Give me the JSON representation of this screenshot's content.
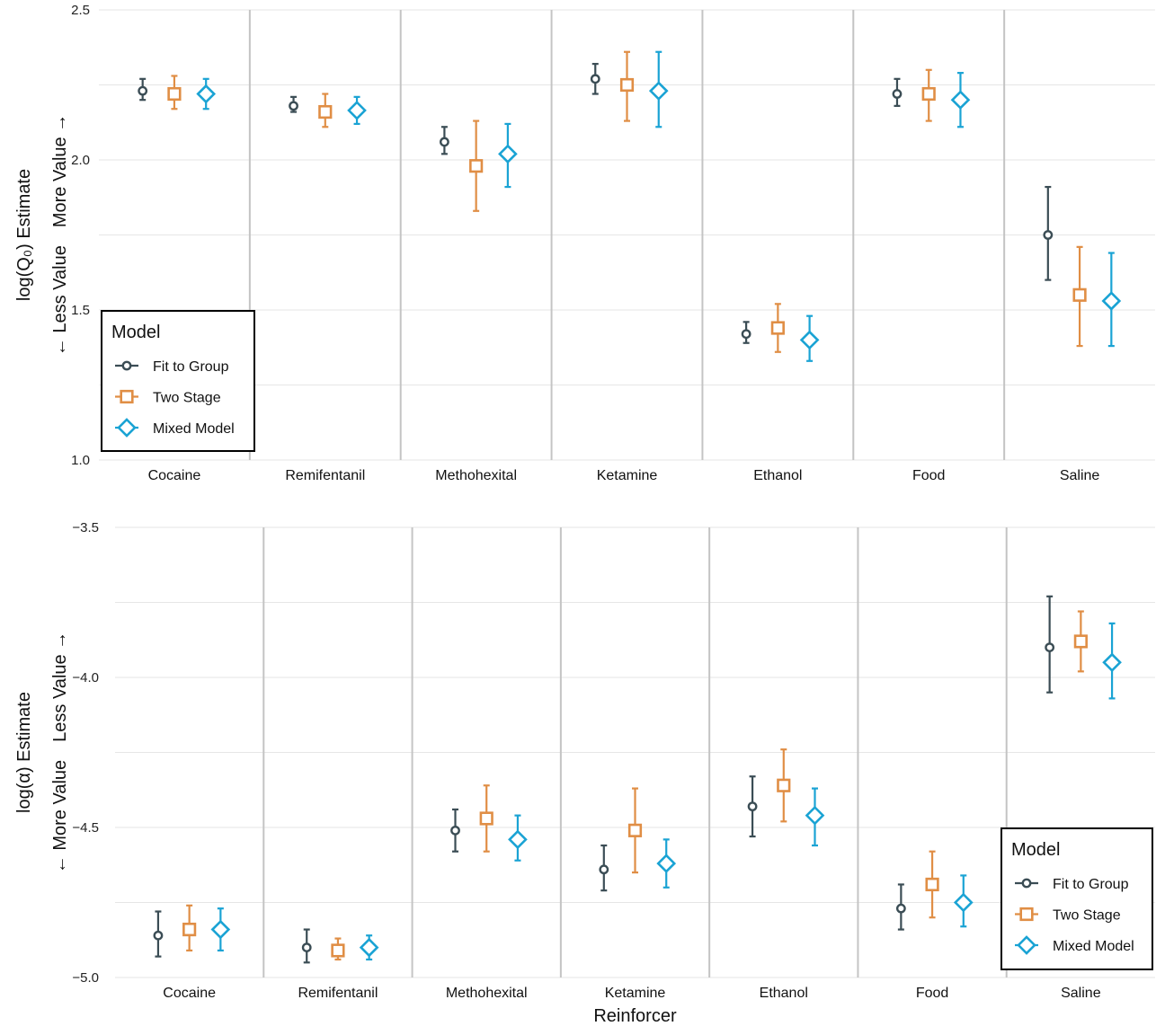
{
  "colors": {
    "fit_to_group": "#3b4d55",
    "two_stage": "#e08e45",
    "mixed_model": "#1aa3d4",
    "grid": "#e6e6e6",
    "separator": "#c4c4c4"
  },
  "chart_data": [
    {
      "type": "scatter",
      "panel": "top",
      "title": "",
      "xlabel": "",
      "ylabel": "log(Q₀) Estimate",
      "ylabel_sub_low": "← Less Value",
      "ylabel_sub_high": "More Value →",
      "ylim": [
        1.0,
        2.5
      ],
      "yticks": [
        1.0,
        1.5,
        2.0,
        2.5
      ],
      "ytick_labels": [
        "1.0",
        "1.5",
        "2.0",
        "2.5"
      ],
      "grid": true,
      "legend": {
        "title": "Model",
        "placement": "bottom-left",
        "entries": [
          "Fit to Group",
          "Two Stage",
          "Mixed Model"
        ]
      },
      "categories": [
        "Cocaine",
        "Remifentanil",
        "Methohexital",
        "Ketamine",
        "Ethanol",
        "Food",
        "Saline"
      ],
      "series": [
        {
          "name": "Fit to Group",
          "marker": "circle",
          "values": [
            2.23,
            2.18,
            2.06,
            2.27,
            1.42,
            2.22,
            1.75
          ],
          "lower": [
            2.2,
            2.16,
            2.02,
            2.22,
            1.39,
            2.18,
            1.6
          ],
          "upper": [
            2.27,
            2.21,
            2.11,
            2.32,
            1.46,
            2.27,
            1.91
          ]
        },
        {
          "name": "Two Stage",
          "marker": "square",
          "values": [
            2.22,
            2.16,
            1.98,
            2.25,
            1.44,
            2.22,
            1.55
          ],
          "lower": [
            2.17,
            2.11,
            1.83,
            2.13,
            1.36,
            2.13,
            1.38
          ],
          "upper": [
            2.28,
            2.22,
            2.13,
            2.36,
            1.52,
            2.3,
            1.71
          ]
        },
        {
          "name": "Mixed Model",
          "marker": "diamond",
          "values": [
            2.22,
            2.165,
            2.02,
            2.23,
            1.4,
            2.2,
            1.53
          ],
          "lower": [
            2.17,
            2.12,
            1.91,
            2.11,
            1.33,
            2.11,
            1.38
          ],
          "upper": [
            2.27,
            2.21,
            2.12,
            2.36,
            1.48,
            2.29,
            1.69
          ]
        }
      ]
    },
    {
      "type": "scatter",
      "panel": "bottom",
      "title": "",
      "xlabel": "Reinforcer",
      "ylabel": "log(α) Estimate",
      "ylabel_sub_low": "← More Value",
      "ylabel_sub_high": "Less Value →",
      "ylim": [
        -5.0,
        -3.5
      ],
      "yticks": [
        -5.0,
        -4.5,
        -4.0,
        -3.5
      ],
      "ytick_labels": [
        "−5.0",
        "−4.5",
        "−4.0",
        "−3.5"
      ],
      "grid": true,
      "legend": {
        "title": "Model",
        "placement": "bottom-right",
        "entries": [
          "Fit to Group",
          "Two Stage",
          "Mixed Model"
        ]
      },
      "categories": [
        "Cocaine",
        "Remifentanil",
        "Methohexital",
        "Ketamine",
        "Ethanol",
        "Food",
        "Saline"
      ],
      "series": [
        {
          "name": "Fit to Group",
          "marker": "circle",
          "values": [
            -4.86,
            -4.9,
            -4.51,
            -4.64,
            -4.43,
            -4.77,
            -3.9
          ],
          "lower": [
            -4.93,
            -4.95,
            -4.58,
            -4.71,
            -4.53,
            -4.84,
            -4.05
          ],
          "upper": [
            -4.78,
            -4.84,
            -4.44,
            -4.56,
            -4.33,
            -4.69,
            -3.73
          ]
        },
        {
          "name": "Two Stage",
          "marker": "square",
          "values": [
            -4.84,
            -4.91,
            -4.47,
            -4.51,
            -4.36,
            -4.69,
            -3.88
          ],
          "lower": [
            -4.91,
            -4.94,
            -4.58,
            -4.65,
            -4.48,
            -4.8,
            -3.98
          ],
          "upper": [
            -4.76,
            -4.87,
            -4.36,
            -4.37,
            -4.24,
            -4.58,
            -3.78
          ]
        },
        {
          "name": "Mixed Model",
          "marker": "diamond",
          "values": [
            -4.84,
            -4.9,
            -4.54,
            -4.62,
            -4.46,
            -4.75,
            -3.95
          ],
          "lower": [
            -4.91,
            -4.94,
            -4.61,
            -4.7,
            -4.56,
            -4.83,
            -4.07
          ],
          "upper": [
            -4.77,
            -4.86,
            -4.46,
            -4.54,
            -4.37,
            -4.66,
            -3.82
          ]
        }
      ]
    }
  ]
}
